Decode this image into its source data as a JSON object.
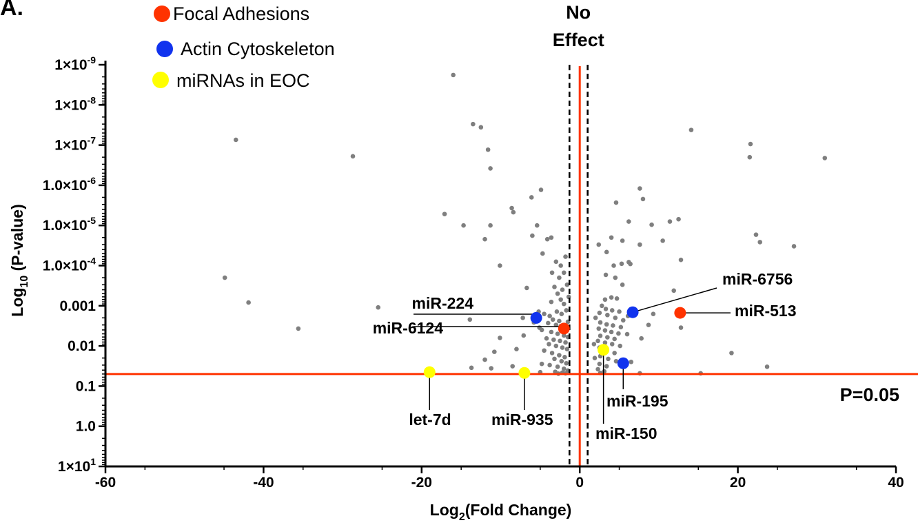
{
  "panel_label": "A.",
  "chart_data": {
    "type": "scatter",
    "x_scale": "linear",
    "y_scale": "log",
    "y_inverted": true,
    "xlim": [
      -60,
      40
    ],
    "ylim_pvalue": [
      10,
      1e-09
    ],
    "xlabel": "Log2(Fold Change)",
    "xlabel_main": "Log",
    "xlabel_sub": "2",
    "xlabel_rest": "(Fold Change)",
    "ylabel": "Log10 (P-value)",
    "ylabel_main": "Log",
    "ylabel_sub": "10",
    "ylabel_rest": " (P-value)",
    "x_ticks": [
      {
        "v": -60,
        "label": "-60"
      },
      {
        "v": -40,
        "label": "-40"
      },
      {
        "v": -20,
        "label": "-20"
      },
      {
        "v": 0,
        "label": "0"
      },
      {
        "v": 20,
        "label": "20"
      },
      {
        "v": 40,
        "label": "40"
      }
    ],
    "y_ticks": [
      {
        "p": 1e-09,
        "base": "1×10",
        "exp": "-9"
      },
      {
        "p": 1e-08,
        "base": "1×10",
        "exp": "-8"
      },
      {
        "p": 1e-07,
        "base": "1×10",
        "exp": "-7"
      },
      {
        "p": 1e-06,
        "base": "1.0×10",
        "exp": "-6"
      },
      {
        "p": 1e-05,
        "base": "1.0×10",
        "exp": "-5"
      },
      {
        "p": 0.0001,
        "base": "1.0×10",
        "exp": "-4"
      },
      {
        "p": 0.001,
        "base": "0.001",
        "exp": ""
      },
      {
        "p": 0.01,
        "base": "0.01",
        "exp": ""
      },
      {
        "p": 0.1,
        "base": "0.1",
        "exp": ""
      },
      {
        "p": 1,
        "base": "1.0",
        "exp": ""
      },
      {
        "p": 10,
        "base": "1×10",
        "exp": "1"
      }
    ],
    "threshold": {
      "p": 0.05,
      "label": "P=0.05",
      "color": "#ff3300"
    },
    "no_effect": {
      "x": 0,
      "band": [
        -1.3,
        1.0
      ],
      "label_line1": "No",
      "label_line2": "Effect",
      "color": "#ff3300"
    },
    "legend": [
      {
        "label": "Focal Adhesions",
        "color": "#ff3300"
      },
      {
        "label": "Actin Cytoskeleton",
        "color": "#1133ee"
      },
      {
        "label": "miRNAs in EOC",
        "color": "#ffff00"
      }
    ],
    "highlighted": [
      {
        "name": "miR-224",
        "x": -5.5,
        "p": 0.002,
        "group": "Actin Cytoskeleton",
        "color": "#1133ee"
      },
      {
        "name": "miR-6124",
        "x": -2.0,
        "p": 0.0037,
        "group": "Focal Adhesions",
        "color": "#ff3300"
      },
      {
        "name": "miR-6756",
        "x": 6.7,
        "p": 0.00145,
        "group": "Actin Cytoskeleton",
        "color": "#1133ee"
      },
      {
        "name": "miR-513",
        "x": 12.7,
        "p": 0.0015,
        "group": "Focal Adhesions",
        "color": "#ff3300"
      },
      {
        "name": "miR-195",
        "x": 5.5,
        "p": 0.027,
        "group": "Actin Cytoskeleton",
        "color": "#1133ee"
      },
      {
        "name": "miR-150",
        "x": 3.0,
        "p": 0.0125,
        "group": "miRNAs in EOC",
        "color": "#ffff00"
      },
      {
        "name": "let-7d",
        "x": -19.0,
        "p": 0.045,
        "group": "miRNAs in EOC",
        "color": "#ffff00"
      },
      {
        "name": "miR-935",
        "x": -7.0,
        "p": 0.047,
        "group": "miRNAs in EOC",
        "color": "#ffff00"
      }
    ],
    "point_color": "#7f7f7f",
    "points": [
      [
        -44.9,
        0.0002
      ],
      [
        -43.5,
        7.4e-08
      ],
      [
        -41.9,
        0.00083
      ],
      [
        -35.6,
        0.0037
      ],
      [
        -28.7,
        1.9e-07
      ],
      [
        -25.5,
        0.0011
      ],
      [
        -16.0,
        1.8e-09
      ],
      [
        -13.5,
        3e-08
      ],
      [
        -12.5,
        3.6e-08
      ],
      [
        -11.6,
        1.3e-07
      ],
      [
        -11.3,
        3.8e-07
      ],
      [
        -17.1,
        5.2e-06
      ],
      [
        -14.7,
        1e-05
      ],
      [
        -11.3,
        1e-05
      ],
      [
        -12.0,
        2.2e-05
      ],
      [
        -10.1,
        0.0001
      ],
      [
        -8.6,
        3.7e-06
      ],
      [
        -8.4,
        4.7e-06
      ],
      [
        -6.1,
        2e-06
      ],
      [
        -5.4,
        1e-05
      ],
      [
        -4.9,
        1.3e-06
      ],
      [
        -6.0,
        1.8e-05
      ],
      [
        -4.1,
        2.2e-05
      ],
      [
        -3.6,
        2e-05
      ],
      [
        -4.7,
        5e-05
      ],
      [
        -6.7,
        0.00036
      ],
      [
        -3.5,
        0.00015
      ],
      [
        -3.0,
        8e-05
      ],
      [
        -2.4,
        0.0001
      ],
      [
        -2.0,
        0.00015
      ],
      [
        -1.8,
        6e-05
      ],
      [
        -2.6,
        0.0002
      ],
      [
        -3.2,
        0.00034
      ],
      [
        -2.8,
        0.0005
      ],
      [
        -2.2,
        0.0004
      ],
      [
        -1.6,
        0.0003
      ],
      [
        -2.4,
        0.0007
      ],
      [
        -3.6,
        0.0008
      ],
      [
        -2.0,
        0.0009
      ],
      [
        -1.4,
        0.0006
      ],
      [
        -5.2,
        0.0014
      ],
      [
        -4.5,
        0.0016
      ],
      [
        -3.8,
        0.0018
      ],
      [
        -2.9,
        0.0014
      ],
      [
        -2.3,
        0.0016
      ],
      [
        -1.7,
        0.0013
      ],
      [
        -3.4,
        0.0022
      ],
      [
        -2.6,
        0.0024
      ],
      [
        -1.5,
        0.0025
      ],
      [
        -4.0,
        0.0027
      ],
      [
        -3.0,
        0.003
      ],
      [
        -2.4,
        0.0032
      ],
      [
        -1.6,
        0.0034
      ],
      [
        -4.8,
        0.004
      ],
      [
        -3.6,
        0.0045
      ],
      [
        -2.8,
        0.005
      ],
      [
        -2.0,
        0.0055
      ],
      [
        -1.5,
        0.006
      ],
      [
        -4.2,
        0.0065
      ],
      [
        -3.3,
        0.007
      ],
      [
        -2.5,
        0.0075
      ],
      [
        -1.8,
        0.0082
      ],
      [
        -3.9,
        0.009
      ],
      [
        -3.0,
        0.01
      ],
      [
        -2.2,
        0.011
      ],
      [
        -1.6,
        0.012
      ],
      [
        -4.5,
        0.013
      ],
      [
        -3.5,
        0.015
      ],
      [
        -2.6,
        0.017
      ],
      [
        -1.9,
        0.019
      ],
      [
        -3.2,
        0.021
      ],
      [
        -2.3,
        0.024
      ],
      [
        -1.7,
        0.027
      ],
      [
        -3.8,
        0.03
      ],
      [
        -2.8,
        0.033
      ],
      [
        -2.0,
        0.037
      ],
      [
        -1.5,
        0.041
      ],
      [
        -3.1,
        0.044
      ],
      [
        -2.2,
        0.046
      ],
      [
        -1.8,
        0.048
      ],
      [
        -2.7,
        0.049
      ],
      [
        -5.8,
        0.0026
      ],
      [
        -5.1,
        0.0035
      ],
      [
        -7.1,
        0.0055
      ],
      [
        -8.0,
        0.012
      ],
      [
        -10.1,
        0.0063
      ],
      [
        -10.8,
        0.014
      ],
      [
        -12.0,
        0.022
      ],
      [
        -8.5,
        0.032
      ],
      [
        -13.7,
        0.035
      ],
      [
        -4.8,
        0.028
      ],
      [
        -5.0,
        0.045
      ],
      [
        -11.2,
        0.036
      ],
      [
        -13.9,
        0.0022
      ],
      [
        -7.2,
        0.002
      ],
      [
        14.1,
        4.2e-08
      ],
      [
        21.6,
        9.4e-08
      ],
      [
        21.5,
        2e-07
      ],
      [
        31.0,
        2.1e-07
      ],
      [
        7.6,
        1.2e-06
      ],
      [
        8.0,
        2.2e-06
      ],
      [
        4.6,
        2.7e-06
      ],
      [
        6.2,
        8e-06
      ],
      [
        9.1,
        9.6e-06
      ],
      [
        11.4,
        8e-06
      ],
      [
        12.5,
        7e-06
      ],
      [
        22.3,
        1.7e-05
      ],
      [
        22.8,
        2.6e-05
      ],
      [
        27.1,
        3.3e-05
      ],
      [
        4.0,
        2e-05
      ],
      [
        5.4,
        2.4e-05
      ],
      [
        7.6,
        3e-05
      ],
      [
        10.5,
        2.4e-05
      ],
      [
        2.4,
        3e-05
      ],
      [
        3.4,
        4.6e-05
      ],
      [
        4.3,
        0.0001
      ],
      [
        5.3,
        9e-05
      ],
      [
        6.2,
        8.2e-05
      ],
      [
        6.4,
        9.1e-05
      ],
      [
        12.8,
        7.2e-05
      ],
      [
        3.3,
        0.00017
      ],
      [
        4.5,
        0.0002
      ],
      [
        5.4,
        0.0003
      ],
      [
        11.9,
        0.00042
      ],
      [
        3.2,
        0.0007
      ],
      [
        4.0,
        0.00062
      ],
      [
        4.7,
        0.00066
      ],
      [
        2.8,
        0.001
      ],
      [
        3.3,
        0.0012
      ],
      [
        4.1,
        0.0013
      ],
      [
        5.0,
        0.0014
      ],
      [
        6.1,
        0.0018
      ],
      [
        2.5,
        0.0015
      ],
      [
        3.5,
        0.0017
      ],
      [
        4.5,
        0.002
      ],
      [
        5.5,
        0.0023
      ],
      [
        2.6,
        0.0026
      ],
      [
        3.4,
        0.0029
      ],
      [
        4.2,
        0.0031
      ],
      [
        5.2,
        0.0034
      ],
      [
        2.4,
        0.0037
      ],
      [
        3.2,
        0.0041
      ],
      [
        4.0,
        0.0045
      ],
      [
        4.9,
        0.0049
      ],
      [
        6.0,
        0.0051
      ],
      [
        2.6,
        0.0056
      ],
      [
        3.5,
        0.0061
      ],
      [
        4.4,
        0.0067
      ],
      [
        2.3,
        0.0075
      ],
      [
        3.2,
        0.0083
      ],
      [
        4.1,
        0.009
      ],
      [
        5.1,
        0.01
      ],
      [
        2.5,
        0.011
      ],
      [
        3.4,
        0.013
      ],
      [
        4.4,
        0.015
      ],
      [
        2.6,
        0.018
      ],
      [
        3.6,
        0.021
      ],
      [
        4.6,
        0.024
      ],
      [
        2.5,
        0.028
      ],
      [
        3.4,
        0.032
      ],
      [
        2.3,
        0.038
      ],
      [
        3.1,
        0.043
      ],
      [
        2.6,
        0.047
      ],
      [
        6.5,
        0.025
      ],
      [
        7.6,
        0.048
      ],
      [
        12.8,
        0.0035
      ],
      [
        19.2,
        0.015
      ],
      [
        15.3,
        0.048
      ],
      [
        23.7,
        0.033
      ],
      [
        9.3,
        0.0016
      ],
      [
        8.7,
        0.003
      ],
      [
        7.8,
        0.0065
      ],
      [
        2.0,
        0.002
      ],
      [
        1.8,
        0.009
      ],
      [
        1.9,
        0.02
      ]
    ]
  }
}
